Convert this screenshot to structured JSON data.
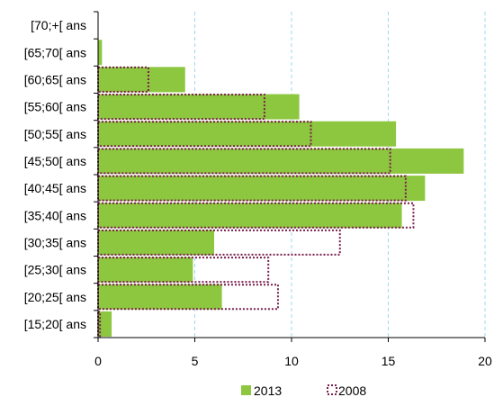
{
  "chart_data": {
    "type": "bar",
    "orientation": "horizontal",
    "categories": [
      "[15;20[ ans",
      "[20;25[ ans",
      "[25;30[ ans",
      "[30;35[ ans",
      "[35;40[ ans",
      "[40;45[ ans",
      "[45;50[ ans",
      "[50;55[ ans",
      "[55;60[ ans",
      "[60;65[ ans",
      "[65;70[ ans",
      "[70;+[ ans"
    ],
    "series": [
      {
        "name": "2013",
        "style": "filled",
        "color": "#8DC63F",
        "values": [
          0.7,
          6.4,
          4.9,
          6.0,
          15.7,
          16.9,
          18.9,
          15.4,
          10.4,
          4.5,
          0.2,
          0.0
        ]
      },
      {
        "name": "2008",
        "style": "dotted-outline",
        "color": "#7A1F4E",
        "values": [
          0.1,
          9.3,
          8.8,
          12.5,
          16.3,
          15.9,
          15.1,
          11.0,
          8.6,
          2.6,
          0.0,
          0.0
        ]
      }
    ],
    "xlim": [
      0,
      20
    ],
    "xticks": [
      "0",
      "5",
      "10",
      "15",
      "20"
    ],
    "grid": "vertical dashed",
    "legend": "bottom-center"
  },
  "colors": {
    "bar_fill": "#8DC63F",
    "outline": "#7A1F4E",
    "grid": "#9ED8EE",
    "axis": "#000000"
  }
}
